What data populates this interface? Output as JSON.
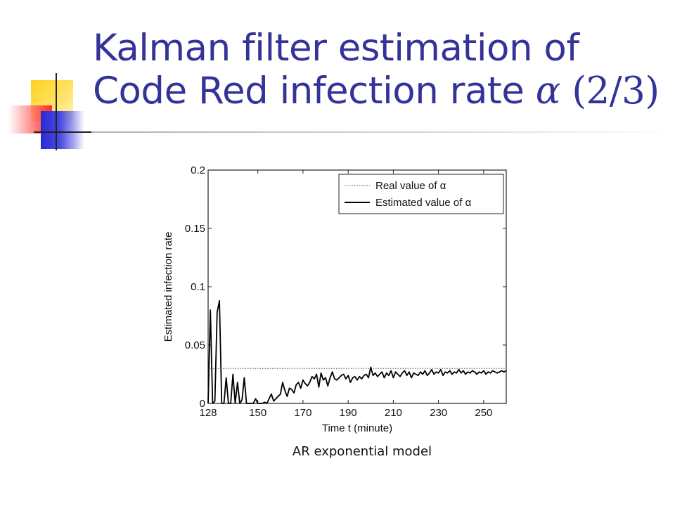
{
  "slide": {
    "title_line1": "Kalman filter estimation of",
    "title_line2_prefix": "Code Red infection rate",
    "title_alpha": "α",
    "title_fraction": "(2/3)",
    "caption": "AR exponential model"
  },
  "chart_data": {
    "type": "line",
    "title": "",
    "xlabel": "Time t (minute)",
    "ylabel": "Estimated infection rate",
    "xlim": [
      128,
      260
    ],
    "ylim": [
      0,
      0.2
    ],
    "xticks": [
      128,
      150,
      170,
      190,
      210,
      230,
      250
    ],
    "yticks": [
      0,
      0.05,
      0.1,
      0.15,
      0.2
    ],
    "ytick_labels": [
      "0",
      "0.05",
      "0.1",
      "0.15",
      "0.2"
    ],
    "legend_position": "top-right",
    "series": [
      {
        "name": "Real value of α",
        "style": "dotted",
        "color": "#555555",
        "x": [
          128,
          260
        ],
        "y": [
          0.03,
          0.03
        ]
      },
      {
        "name": "Estimated value of α",
        "style": "solid",
        "color": "#000000",
        "x": [
          128,
          129,
          130,
          131,
          132,
          133,
          134,
          135,
          136,
          137,
          138,
          139,
          140,
          141,
          142,
          143,
          144,
          145,
          146,
          147,
          148,
          149,
          150,
          151,
          152,
          153,
          154,
          155,
          156,
          157,
          158,
          159,
          160,
          161,
          162,
          163,
          164,
          165,
          166,
          167,
          168,
          169,
          170,
          171,
          172,
          173,
          174,
          175,
          176,
          177,
          178,
          179,
          180,
          181,
          182,
          183,
          184,
          185,
          186,
          187,
          188,
          189,
          190,
          191,
          192,
          193,
          194,
          195,
          196,
          197,
          198,
          199,
          200,
          201,
          202,
          203,
          204,
          205,
          206,
          207,
          208,
          209,
          210,
          211,
          212,
          213,
          214,
          215,
          216,
          217,
          218,
          219,
          220,
          221,
          222,
          223,
          224,
          225,
          226,
          227,
          228,
          229,
          230,
          231,
          232,
          233,
          234,
          235,
          236,
          237,
          238,
          239,
          240,
          241,
          242,
          243,
          244,
          245,
          246,
          247,
          248,
          249,
          250,
          251,
          252,
          253,
          254,
          255,
          256,
          257,
          258,
          259,
          260
        ],
        "y": [
          0,
          0.08,
          0,
          0.002,
          0.078,
          0.088,
          0,
          0,
          0.022,
          0,
          0,
          0.025,
          0,
          0.018,
          0,
          0.003,
          0.022,
          0,
          0,
          0,
          0,
          0.004,
          0,
          0,
          0,
          0.001,
          0,
          0.004,
          0.008,
          0.002,
          0.004,
          0.006,
          0.008,
          0.018,
          0.011,
          0.006,
          0.013,
          0.012,
          0.009,
          0.016,
          0.018,
          0.013,
          0.02,
          0.017,
          0.015,
          0.018,
          0.023,
          0.021,
          0.025,
          0.014,
          0.026,
          0.02,
          0.022,
          0.015,
          0.022,
          0.027,
          0.021,
          0.02,
          0.022,
          0.024,
          0.025,
          0.021,
          0.024,
          0.018,
          0.022,
          0.023,
          0.02,
          0.023,
          0.021,
          0.024,
          0.025,
          0.022,
          0.031,
          0.024,
          0.026,
          0.023,
          0.025,
          0.027,
          0.022,
          0.026,
          0.024,
          0.028,
          0.022,
          0.027,
          0.025,
          0.023,
          0.026,
          0.028,
          0.024,
          0.027,
          0.022,
          0.026,
          0.025,
          0.024,
          0.027,
          0.025,
          0.028,
          0.024,
          0.026,
          0.029,
          0.025,
          0.027,
          0.026,
          0.029,
          0.024,
          0.027,
          0.026,
          0.028,
          0.025,
          0.027,
          0.026,
          0.029,
          0.026,
          0.028,
          0.025,
          0.027,
          0.026,
          0.028,
          0.027,
          0.025,
          0.027,
          0.026,
          0.028,
          0.025,
          0.027,
          0.026,
          0.028,
          0.027,
          0.026,
          0.027,
          0.028,
          0.027,
          0.028
        ]
      }
    ]
  }
}
